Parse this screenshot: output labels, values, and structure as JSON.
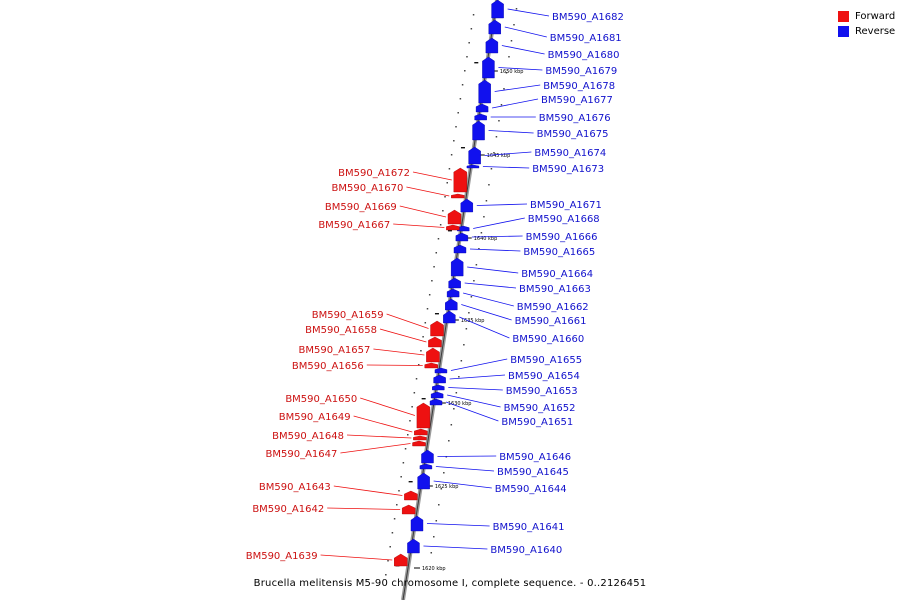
{
  "legend": {
    "forward_label": "Forward",
    "reverse_label": "Reverse",
    "forward_color": "#ee1111",
    "reverse_color": "#1111ee"
  },
  "caption": "Brucella melitensis M5-90 chromosome I, complete sequence. - 0..2126451",
  "ticks": [
    "1650 kbp",
    "1645 kbp",
    "1640 kbp",
    "1635 kbp",
    "1630 kbp",
    "1625 kbp",
    "1620 kbp"
  ],
  "reverse_genes": [
    "BM590_A1682",
    "BM590_A1681",
    "BM590_A1680",
    "BM590_A1679",
    "BM590_A1678",
    "BM590_A1677",
    "BM590_A1676",
    "BM590_A1675",
    "BM590_A1674",
    "BM590_A1673",
    "BM590_A1671",
    "BM590_A1668",
    "BM590_A1666",
    "BM590_A1665",
    "BM590_A1664",
    "BM590_A1663",
    "BM590_A1662",
    "BM590_A1661",
    "BM590_A1660",
    "BM590_A1655",
    "BM590_A1654",
    "BM590_A1653",
    "BM590_A1652",
    "BM590_A1651",
    "BM590_A1646",
    "BM590_A1645",
    "BM590_A1644",
    "BM590_A1641",
    "BM590_A1640"
  ],
  "forward_genes": [
    "BM590_A1672",
    "BM590_A1670",
    "BM590_A1669",
    "BM590_A1667",
    "BM590_A1659",
    "BM590_A1658",
    "BM590_A1657",
    "BM590_A1656",
    "BM590_A1650",
    "BM590_A1649",
    "BM590_A1648",
    "BM590_A1647",
    "BM590_A1643",
    "BM590_A1642",
    "BM590_A1639"
  ]
}
